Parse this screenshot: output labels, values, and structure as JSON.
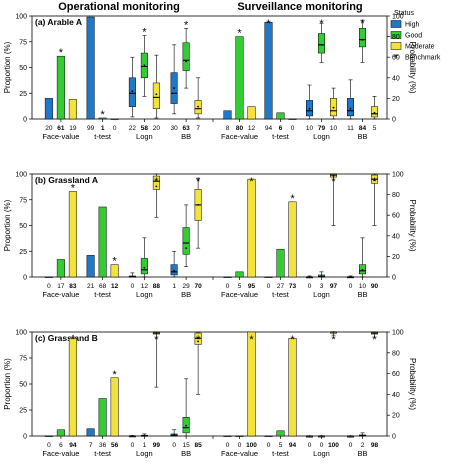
{
  "figure": {
    "col_titles": [
      "Operational monitoring",
      "Surveillance monitoring"
    ],
    "ylabel_left": "Proportion (%)",
    "ylabel_right": "Probability (%)",
    "legend": {
      "title": "Status",
      "items": [
        {
          "label": "High",
          "color": "#1f78c8"
        },
        {
          "label": "Good",
          "color": "#33cc33"
        },
        {
          "label": "Moderate",
          "color": "#f2e23a"
        },
        {
          "label": "Benchmark",
          "marker": "*"
        }
      ]
    }
  },
  "chart_data": [
    {
      "panel_label": "(a)  Arable A",
      "type": "bar+box",
      "ylim": [
        0,
        100
      ],
      "yticks": [
        0,
        25,
        50,
        75,
        100
      ],
      "right_yticks": [
        0,
        20,
        40,
        60,
        80,
        100
      ],
      "groups": [
        "Face-value",
        "t-test",
        "Logn",
        "BB"
      ],
      "statuses": [
        "High",
        "Good",
        "Moderate"
      ],
      "operational": {
        "bars": {
          "Face-value": [
            20,
            61,
            19
          ],
          "t-test": [
            99,
            1,
            0
          ]
        },
        "boxes": {
          "Logn": [
            {
              "min": 2,
              "q1": 12,
              "median": 25,
              "q3": 40,
              "max": 60,
              "mean": 27
            },
            {
              "min": 22,
              "q1": 40,
              "median": 51,
              "q3": 64,
              "max": 81,
              "mean": 52
            },
            {
              "min": 1,
              "q1": 10,
              "median": 21,
              "q3": 35,
              "max": 62,
              "mean": 24
            }
          ],
          "BB": [
            {
              "min": 5,
              "q1": 15,
              "median": 25,
              "q3": 45,
              "max": 72,
              "mean": 30
            },
            {
              "min": 30,
              "q1": 47,
              "median": 57,
              "q3": 74,
              "max": 88,
              "mean": 56
            },
            {
              "min": 1,
              "q1": 5,
              "median": 10,
              "q3": 18,
              "max": 40,
              "mean": 12
            }
          ]
        },
        "counts": {
          "Face-value": [
            20,
            61,
            19
          ],
          "t-test": [
            99,
            1,
            0
          ],
          "Logn": [
            22,
            58,
            20
          ],
          "BB": [
            30,
            63,
            7
          ]
        },
        "bold_count": {
          "Face-value": 1,
          "t-test": 1,
          "Logn": 1,
          "BB": 1
        },
        "benchmark": {
          "Face-value": 1,
          "t-test": 1,
          "Logn": 1,
          "BB": 1
        }
      },
      "surveillance": {
        "bars": {
          "Face-value": [
            8,
            80,
            12
          ],
          "t-test": [
            94,
            6,
            0
          ]
        },
        "boxes": {
          "Logn": [
            {
              "min": 0,
              "q1": 3,
              "median": 8,
              "q3": 18,
              "max": 33,
              "mean": 10
            },
            {
              "min": 55,
              "q1": 64,
              "median": 72,
              "q3": 83,
              "max": 93,
              "mean": 72
            },
            {
              "min": 0,
              "q1": 3,
              "median": 8,
              "q3": 20,
              "max": 30,
              "mean": 11
            }
          ],
          "BB": [
            {
              "min": 0,
              "q1": 3,
              "median": 8,
              "q3": 20,
              "max": 38,
              "mean": 10
            },
            {
              "min": 55,
              "q1": 70,
              "median": 77,
              "q3": 88,
              "max": 96,
              "mean": 77
            },
            {
              "min": 0,
              "q1": 2,
              "median": 5,
              "q3": 12,
              "max": 22,
              "mean": 6
            }
          ]
        },
        "counts": {
          "Face-value": [
            8,
            80,
            12
          ],
          "t-test": [
            94,
            6,
            0
          ],
          "Logn": [
            10,
            79,
            10
          ],
          "BB": [
            11,
            84,
            5
          ]
        },
        "bold_count": {
          "Face-value": 1,
          "t-test": 1,
          "Logn": 1,
          "BB": 1
        },
        "benchmark": {
          "Face-value": 1,
          "t-test": 0,
          "Logn": 1,
          "BB": 1
        }
      }
    },
    {
      "panel_label": "(b)  Grassland A",
      "type": "bar+box",
      "ylim": [
        0,
        100
      ],
      "yticks": [
        0,
        25,
        50,
        75,
        100
      ],
      "right_yticks": [
        0,
        20,
        40,
        60,
        80,
        100
      ],
      "groups": [
        "Face-value",
        "t-test",
        "Logn",
        "BB"
      ],
      "statuses": [
        "High",
        "Good",
        "Moderate"
      ],
      "operational": {
        "bars": {
          "Face-value": [
            0,
            17,
            83
          ],
          "t-test": [
            21,
            68,
            12
          ]
        },
        "boxes": {
          "Logn": [
            {
              "min": 0,
              "q1": 0,
              "median": 0.3,
              "q3": 1,
              "max": 4,
              "mean": 0.5
            },
            {
              "min": 0,
              "q1": 3,
              "median": 7,
              "q3": 18,
              "max": 38,
              "mean": 9
            },
            {
              "min": 58,
              "q1": 85,
              "median": 93,
              "q3": 98,
              "max": 100,
              "mean": 88
            }
          ],
          "BB": [
            {
              "min": 0,
              "q1": 2,
              "median": 5,
              "q3": 12,
              "max": 25,
              "mean": 6
            },
            {
              "min": 10,
              "q1": 22,
              "median": 33,
              "q3": 48,
              "max": 70,
              "mean": 28
            },
            {
              "min": 28,
              "q1": 55,
              "median": 70,
              "q3": 85,
              "max": 96,
              "mean": 70
            }
          ]
        },
        "counts": {
          "Face-value": [
            0,
            17,
            83
          ],
          "t-test": [
            21,
            68,
            12
          ],
          "Logn": [
            0,
            12,
            88
          ],
          "BB": [
            1,
            29,
            70
          ]
        },
        "bold_count": {
          "Face-value": 2,
          "t-test": 2,
          "Logn": 2,
          "BB": 2
        },
        "benchmark": {
          "Face-value": 2,
          "t-test": 2,
          "Logn": 2,
          "BB": 2
        }
      },
      "surveillance": {
        "bars": {
          "Face-value": [
            0,
            5,
            95
          ],
          "t-test": [
            0,
            27,
            73
          ]
        },
        "boxes": {
          "Logn": [
            {
              "min": 0,
              "q1": 0,
              "median": 0,
              "q3": 0.2,
              "max": 1,
              "mean": 0.1
            },
            {
              "min": 0,
              "q1": 0,
              "median": 0.5,
              "q3": 2,
              "max": 5,
              "mean": 1
            },
            {
              "min": 50,
              "q1": 97,
              "median": 99,
              "q3": 100,
              "max": 100,
              "mean": 98
            }
          ],
          "BB": [
            {
              "min": 0,
              "q1": 0,
              "median": 0,
              "q3": 0.3,
              "max": 1,
              "mean": 0.1
            },
            {
              "min": 0,
              "q1": 3,
              "median": 6,
              "q3": 12,
              "max": 38,
              "mean": 7
            },
            {
              "min": 50,
              "q1": 91,
              "median": 95,
              "q3": 99,
              "max": 100,
              "mean": 94
            }
          ]
        },
        "counts": {
          "Face-value": [
            0,
            5,
            95
          ],
          "t-test": [
            0,
            27,
            73
          ],
          "Logn": [
            0,
            3,
            97
          ],
          "BB": [
            0,
            10,
            90
          ]
        },
        "bold_count": {
          "Face-value": 2,
          "t-test": 2,
          "Logn": 2,
          "BB": 2
        },
        "benchmark": {
          "Face-value": 2,
          "t-test": 2,
          "Logn": 2,
          "BB": 2
        }
      }
    },
    {
      "panel_label": "(c)  Grassland B",
      "type": "bar+box",
      "ylim": [
        0,
        100
      ],
      "yticks": [
        0,
        25,
        50,
        75,
        100
      ],
      "right_yticks": [
        0,
        20,
        40,
        60,
        80,
        100
      ],
      "groups": [
        "Face-value",
        "t-test",
        "Logn",
        "BB"
      ],
      "statuses": [
        "High",
        "Good",
        "Moderate"
      ],
      "operational": {
        "bars": {
          "Face-value": [
            0,
            6,
            94
          ],
          "t-test": [
            7,
            36,
            56
          ]
        },
        "boxes": {
          "Logn": [
            {
              "min": 0,
              "q1": 0,
              "median": 0,
              "q3": 0.2,
              "max": 0.5,
              "mean": 0
            },
            {
              "min": 0,
              "q1": 0,
              "median": 0.2,
              "q3": 0.8,
              "max": 2,
              "mean": 0.3
            },
            {
              "min": 47,
              "q1": 98,
              "median": 99,
              "q3": 100,
              "max": 100,
              "mean": 99
            }
          ],
          "BB": [
            {
              "min": 0,
              "q1": 0,
              "median": 0.5,
              "q3": 2,
              "max": 6,
              "mean": 1
            },
            {
              "min": 0,
              "q1": 3,
              "median": 8,
              "q3": 18,
              "max": 55,
              "mean": 10
            },
            {
              "min": 40,
              "q1": 88,
              "median": 94,
              "q3": 99,
              "max": 100,
              "mean": 91
            }
          ]
        },
        "counts": {
          "Face-value": [
            0,
            6,
            94
          ],
          "t-test": [
            7,
            36,
            56
          ],
          "Logn": [
            0,
            1,
            99
          ],
          "BB": [
            0,
            15,
            85
          ]
        },
        "bold_count": {
          "Face-value": 2,
          "t-test": 2,
          "Logn": 2,
          "BB": 2
        },
        "benchmark": {
          "Face-value": 2,
          "t-test": 2,
          "Logn": 2,
          "BB": 2
        }
      },
      "surveillance": {
        "bars": {
          "Face-value": [
            0,
            0,
            100
          ],
          "t-test": [
            0,
            5,
            94
          ]
        },
        "boxes": {
          "Logn": [
            {
              "min": 0,
              "q1": 0,
              "median": 0,
              "q3": 0,
              "max": 0.2,
              "mean": 0
            },
            {
              "min": 0,
              "q1": 0,
              "median": 0,
              "q3": 0.1,
              "max": 0.3,
              "mean": 0
            },
            {
              "min": 97,
              "q1": 99.5,
              "median": 100,
              "q3": 100,
              "max": 100,
              "mean": 100
            }
          ],
          "BB": [
            {
              "min": 0,
              "q1": 0,
              "median": 0,
              "q3": 0,
              "max": 0.2,
              "mean": 0
            },
            {
              "min": 0,
              "q1": 0,
              "median": 0.5,
              "q3": 1,
              "max": 3,
              "mean": 0.5
            },
            {
              "min": 95,
              "q1": 98,
              "median": 99,
              "q3": 100,
              "max": 100,
              "mean": 99
            }
          ]
        },
        "counts": {
          "Face-value": [
            0,
            0,
            100
          ],
          "t-test": [
            0,
            5,
            94
          ],
          "Logn": [
            0,
            0,
            100
          ],
          "BB": [
            0,
            2,
            98
          ]
        },
        "bold_count": {
          "Face-value": 2,
          "t-test": 2,
          "Logn": 2,
          "BB": 2
        },
        "benchmark": {
          "Face-value": 2,
          "t-test": 2,
          "Logn": 2,
          "BB": 2
        }
      }
    }
  ]
}
